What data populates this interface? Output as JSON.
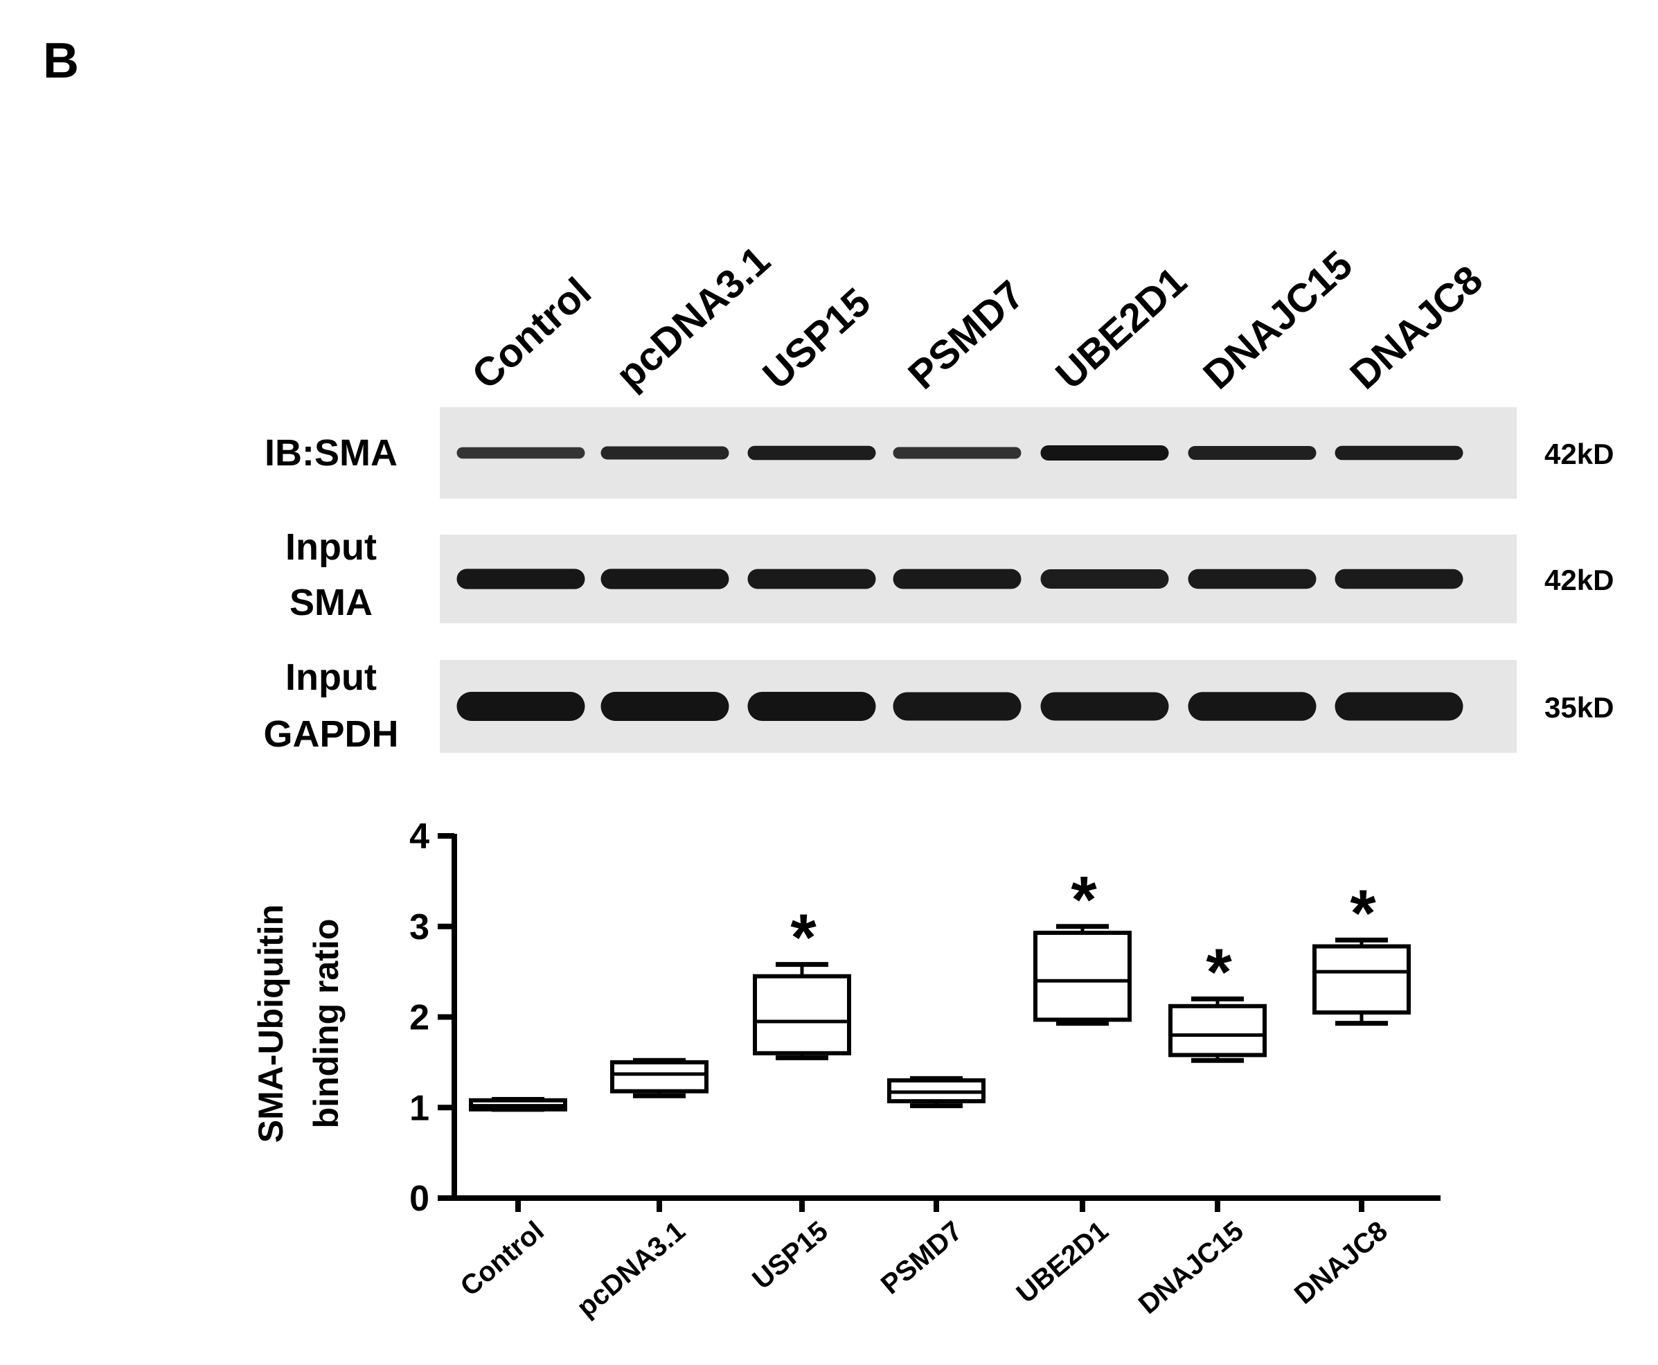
{
  "panel_label": "B",
  "blot": {
    "lanes": [
      "Control",
      "pcDNA3.1",
      "USP15",
      "PSMD7",
      "UBE2D1",
      "DNAJC15",
      "DNAJC8"
    ],
    "rows": [
      {
        "label_lines": [
          "IB:SMA"
        ],
        "size": "42kD",
        "band_intensity": [
          0.45,
          0.7,
          0.85,
          0.5,
          1.0,
          0.8,
          0.85
        ]
      },
      {
        "label_lines": [
          "Input",
          "SMA"
        ],
        "size": "42kD",
        "band_intensity": [
          0.95,
          0.95,
          0.9,
          0.9,
          0.85,
          0.88,
          0.88
        ]
      },
      {
        "label_lines": [
          "Input",
          "GAPDH"
        ],
        "size": "35kD",
        "band_intensity": [
          1.0,
          1.0,
          1.0,
          0.95,
          0.95,
          0.97,
          0.95
        ]
      }
    ]
  },
  "chart_data": {
    "type": "box",
    "title": "",
    "xlabel": "",
    "ylabel_lines": [
      "SMA-Ubiquitin",
      "binding ratio"
    ],
    "ylim": [
      0,
      4
    ],
    "yticks": [
      0,
      1,
      2,
      3,
      4
    ],
    "categories": [
      "Control",
      "pcDNA3.1",
      "USP15",
      "PSMD7",
      "UBE2D1",
      "DNAJC15",
      "DNAJC8"
    ],
    "boxes": [
      {
        "min": 0.98,
        "q1": 0.98,
        "median": 1.02,
        "q3": 1.08,
        "max": 1.09,
        "significant": false
      },
      {
        "min": 1.13,
        "q1": 1.18,
        "median": 1.37,
        "q3": 1.5,
        "max": 1.52,
        "significant": false
      },
      {
        "min": 1.55,
        "q1": 1.6,
        "median": 1.95,
        "q3": 2.45,
        "max": 2.58,
        "significant": true
      },
      {
        "min": 1.02,
        "q1": 1.07,
        "median": 1.17,
        "q3": 1.3,
        "max": 1.32,
        "significant": false
      },
      {
        "min": 1.93,
        "q1": 1.97,
        "median": 2.4,
        "q3": 2.93,
        "max": 3.0,
        "significant": true
      },
      {
        "min": 1.52,
        "q1": 1.58,
        "median": 1.8,
        "q3": 2.12,
        "max": 2.2,
        "significant": true
      },
      {
        "min": 1.93,
        "q1": 2.05,
        "median": 2.5,
        "q3": 2.78,
        "max": 2.85,
        "significant": true
      }
    ],
    "significance_marker": "*",
    "grid": false,
    "legend": "none"
  }
}
